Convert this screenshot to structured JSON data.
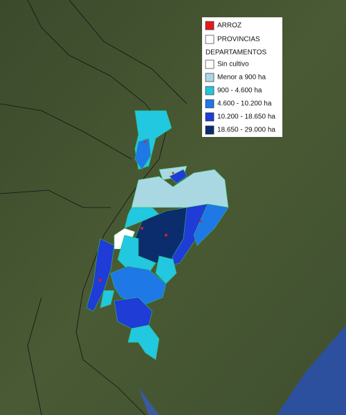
{
  "legend": {
    "items": [
      {
        "label": "ARROZ",
        "color": "#e31a1c"
      },
      {
        "label": "PROVINCIAS",
        "color": "#ffffff"
      },
      {
        "label": "DEPARTAMENTOS"
      },
      {
        "label": "Sin cultivo",
        "color": "#ffffff"
      },
      {
        "label": "Menor a 900 ha",
        "color": "#a9d8e3"
      },
      {
        "label": "900 - 4.600 ha",
        "color": "#22c7e0"
      },
      {
        "label": "4.600 - 10.200 ha",
        "color": "#1e78e6"
      },
      {
        "label": "10.200 - 18.650 ha",
        "color": "#1f3cd6"
      },
      {
        "label": "18.650 - 29.000 ha",
        "color": "#0b2d6e"
      }
    ]
  }
}
